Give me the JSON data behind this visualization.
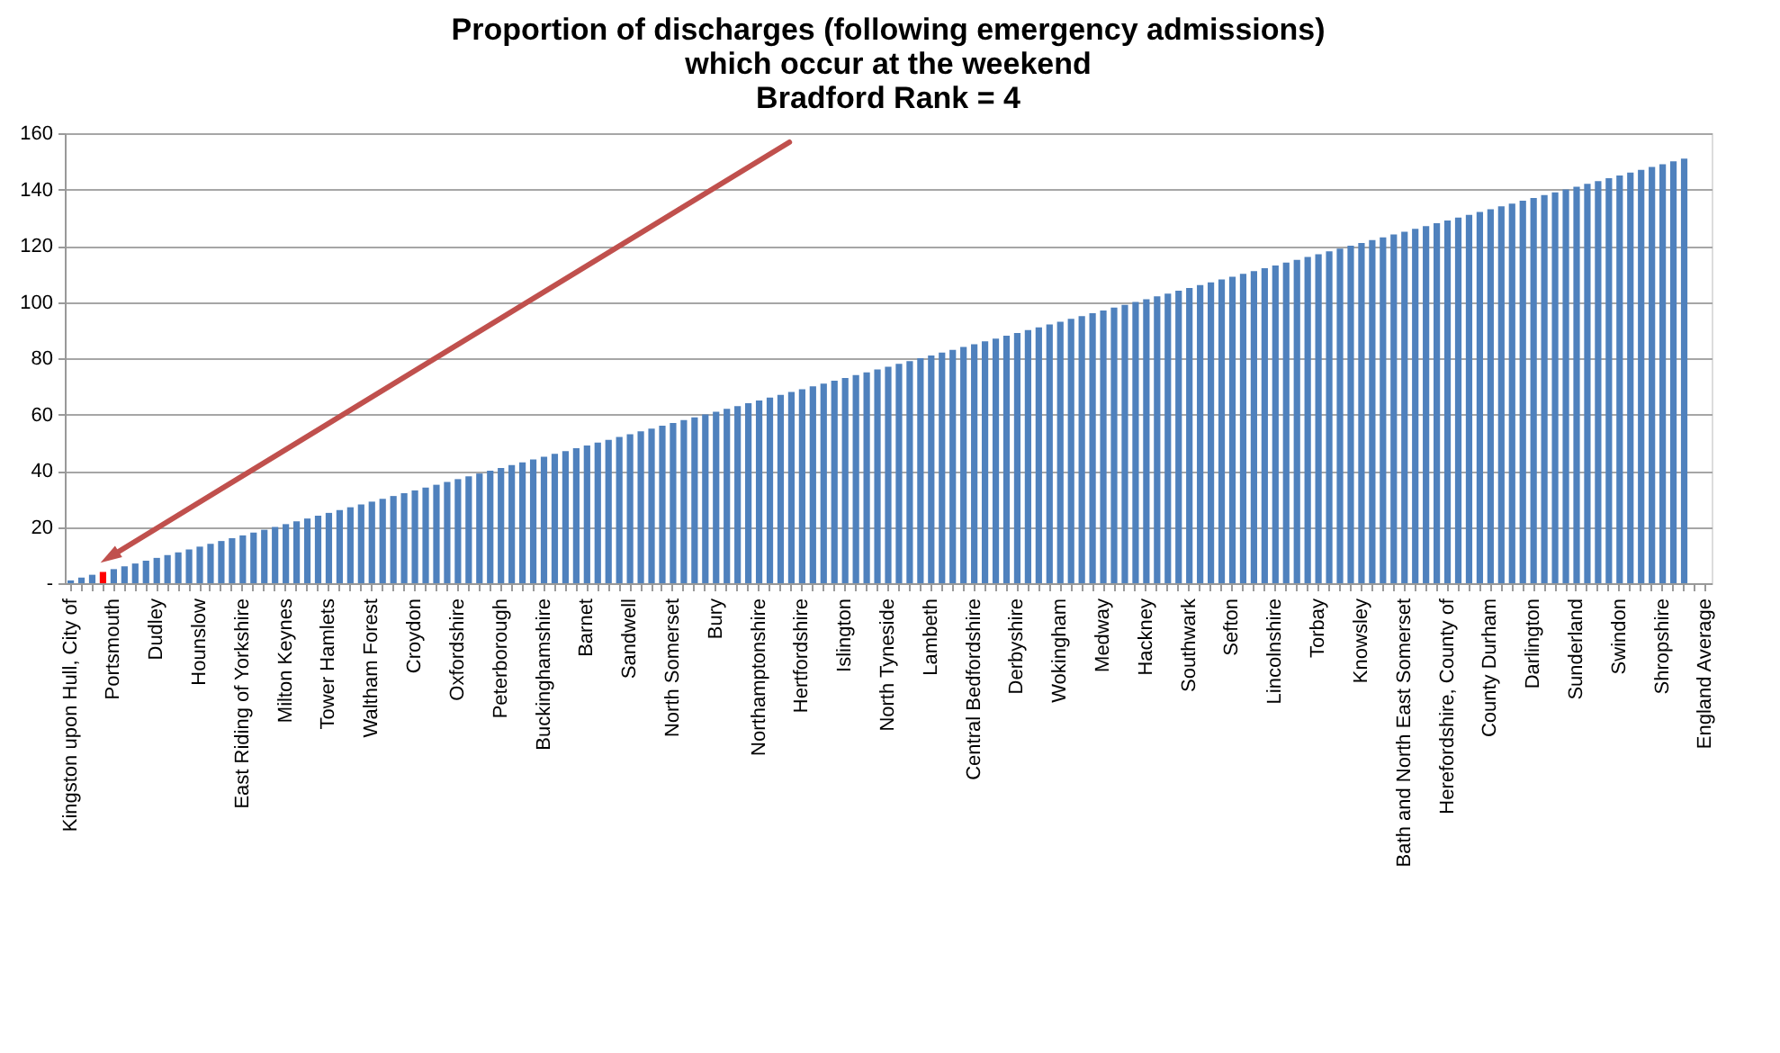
{
  "chart_data": {
    "type": "bar",
    "title": [
      "Proportion of discharges (following emergency admissions)",
      "which occur at the weekend",
      "Bradford  Rank = 4"
    ],
    "categories": [
      "Kingston upon Hull, City of",
      null,
      null,
      null,
      "Portsmouth",
      null,
      null,
      null,
      "Dudley",
      null,
      null,
      null,
      "Hounslow",
      null,
      null,
      null,
      "East Riding of Yorkshire",
      null,
      null,
      null,
      "Milton Keynes",
      null,
      null,
      null,
      "Tower Hamlets",
      null,
      null,
      null,
      "Waltham Forest",
      null,
      null,
      null,
      "Croydon",
      null,
      null,
      null,
      "Oxfordshire",
      null,
      null,
      null,
      "Peterborough",
      null,
      null,
      null,
      "Buckinghamshire",
      null,
      null,
      null,
      "Barnet",
      null,
      null,
      null,
      "Sandwell",
      null,
      null,
      null,
      "North Somerset",
      null,
      null,
      null,
      "Bury",
      null,
      null,
      null,
      "Northamptonshire",
      null,
      null,
      null,
      "Hertfordshire",
      null,
      null,
      null,
      "Islington",
      null,
      null,
      null,
      "North Tyneside",
      null,
      null,
      null,
      "Lambeth",
      null,
      null,
      null,
      "Central Bedfordshire",
      null,
      null,
      null,
      "Derbyshire",
      null,
      null,
      null,
      "Wokingham",
      null,
      null,
      null,
      "Medway",
      null,
      null,
      null,
      "Hackney",
      null,
      null,
      null,
      "Southwark",
      null,
      null,
      null,
      "Sefton",
      null,
      null,
      null,
      "Lincolnshire",
      null,
      null,
      null,
      "Torbay",
      null,
      null,
      null,
      "Knowsley",
      null,
      null,
      null,
      "Bath and North East Somerset",
      null,
      null,
      null,
      "Herefordshire, County of",
      null,
      null,
      null,
      "County Durham",
      null,
      null,
      null,
      "Darlington",
      null,
      null,
      null,
      "Sunderland",
      null,
      null,
      null,
      "Swindon",
      null,
      null,
      null,
      "Shropshire",
      null,
      null,
      null,
      "England Average"
    ],
    "values": [
      1,
      2,
      3,
      4,
      5,
      6,
      7,
      8,
      9,
      10,
      11,
      12,
      13,
      14,
      15,
      16,
      17,
      18,
      19,
      20,
      21,
      22,
      23,
      24,
      25,
      26,
      27,
      28,
      29,
      30,
      31,
      32,
      33,
      34,
      35,
      36,
      37,
      38,
      39,
      40,
      41,
      42,
      43,
      44,
      45,
      46,
      47,
      48,
      49,
      50,
      51,
      52,
      53,
      54,
      55,
      56,
      57,
      58,
      59,
      60,
      61,
      62,
      63,
      64,
      65,
      66,
      67,
      68,
      69,
      70,
      71,
      72,
      73,
      74,
      75,
      76,
      77,
      78,
      79,
      80,
      81,
      82,
      83,
      84,
      85,
      86,
      87,
      88,
      89,
      90,
      91,
      92,
      93,
      94,
      95,
      96,
      97,
      98,
      99,
      100,
      101,
      102,
      103,
      104,
      105,
      106,
      107,
      108,
      109,
      110,
      111,
      112,
      113,
      114,
      115,
      116,
      117,
      118,
      119,
      120,
      121,
      122,
      123,
      124,
      125,
      126,
      127,
      128,
      129,
      130,
      131,
      132,
      133,
      134,
      135,
      136,
      137,
      138,
      139,
      140,
      141,
      142,
      143,
      144,
      145,
      146,
      147,
      148,
      149,
      150,
      151,
      null,
      null
    ],
    "colors": [
      "#4f81bd",
      "#4f81bd",
      "#4f81bd",
      "#ff0000",
      "#4f81bd",
      "#4f81bd",
      "#4f81bd",
      "#4f81bd",
      "#4f81bd",
      "#4f81bd",
      "#4f81bd",
      "#4f81bd",
      "#4f81bd",
      "#4f81bd",
      "#4f81bd",
      "#4f81bd",
      "#4f81bd",
      "#4f81bd",
      "#4f81bd",
      "#4f81bd",
      "#4f81bd",
      "#4f81bd",
      "#4f81bd",
      "#4f81bd",
      "#4f81bd",
      "#4f81bd",
      "#4f81bd",
      "#4f81bd",
      "#4f81bd",
      "#4f81bd",
      "#4f81bd",
      "#4f81bd",
      "#4f81bd",
      "#4f81bd",
      "#4f81bd",
      "#4f81bd",
      "#4f81bd",
      "#4f81bd",
      "#4f81bd",
      "#4f81bd",
      "#4f81bd",
      "#4f81bd",
      "#4f81bd",
      "#4f81bd",
      "#4f81bd",
      "#4f81bd",
      "#4f81bd",
      "#4f81bd",
      "#4f81bd",
      "#4f81bd",
      "#4f81bd",
      "#4f81bd",
      "#4f81bd",
      "#4f81bd",
      "#4f81bd",
      "#4f81bd",
      "#4f81bd",
      "#4f81bd",
      "#4f81bd",
      "#4f81bd",
      "#4f81bd",
      "#4f81bd",
      "#4f81bd",
      "#4f81bd",
      "#4f81bd",
      "#4f81bd",
      "#4f81bd",
      "#4f81bd",
      "#4f81bd",
      "#4f81bd",
      "#4f81bd",
      "#4f81bd",
      "#4f81bd",
      "#4f81bd",
      "#4f81bd",
      "#4f81bd",
      "#4f81bd",
      "#4f81bd",
      "#4f81bd",
      "#4f81bd",
      "#4f81bd",
      "#4f81bd",
      "#4f81bd",
      "#4f81bd",
      "#4f81bd",
      "#4f81bd",
      "#4f81bd",
      "#4f81bd",
      "#4f81bd",
      "#4f81bd",
      "#4f81bd",
      "#4f81bd",
      "#4f81bd",
      "#4f81bd",
      "#4f81bd",
      "#4f81bd",
      "#4f81bd",
      "#4f81bd",
      "#4f81bd",
      "#4f81bd",
      "#4f81bd",
      "#4f81bd",
      "#4f81bd",
      "#4f81bd",
      "#4f81bd",
      "#4f81bd",
      "#4f81bd",
      "#4f81bd",
      "#4f81bd",
      "#4f81bd",
      "#4f81bd",
      "#4f81bd",
      "#4f81bd",
      "#4f81bd",
      "#4f81bd",
      "#4f81bd",
      "#4f81bd",
      "#4f81bd",
      "#4f81bd",
      "#4f81bd",
      "#4f81bd",
      "#4f81bd",
      "#4f81bd",
      "#4f81bd",
      "#4f81bd",
      "#4f81bd",
      "#4f81bd",
      "#4f81bd",
      "#4f81bd",
      "#4f81bd",
      "#4f81bd",
      "#4f81bd",
      "#4f81bd",
      "#4f81bd",
      "#4f81bd",
      "#4f81bd",
      "#4f81bd",
      "#4f81bd",
      "#4f81bd",
      "#4f81bd",
      "#4f81bd",
      "#4f81bd",
      "#4f81bd",
      "#4f81bd",
      "#4f81bd",
      "#4f81bd",
      "#4f81bd",
      "#4f81bd",
      "#4f81bd",
      "#4f81bd",
      "#4f81bd",
      "#4f81bd",
      "#4f81bd"
    ],
    "ylim": [
      0,
      160
    ],
    "yticks": [
      {
        "value": 0,
        "label": "-"
      },
      20,
      40,
      60,
      80,
      100,
      120,
      140,
      160
    ],
    "grid": "y"
  }
}
